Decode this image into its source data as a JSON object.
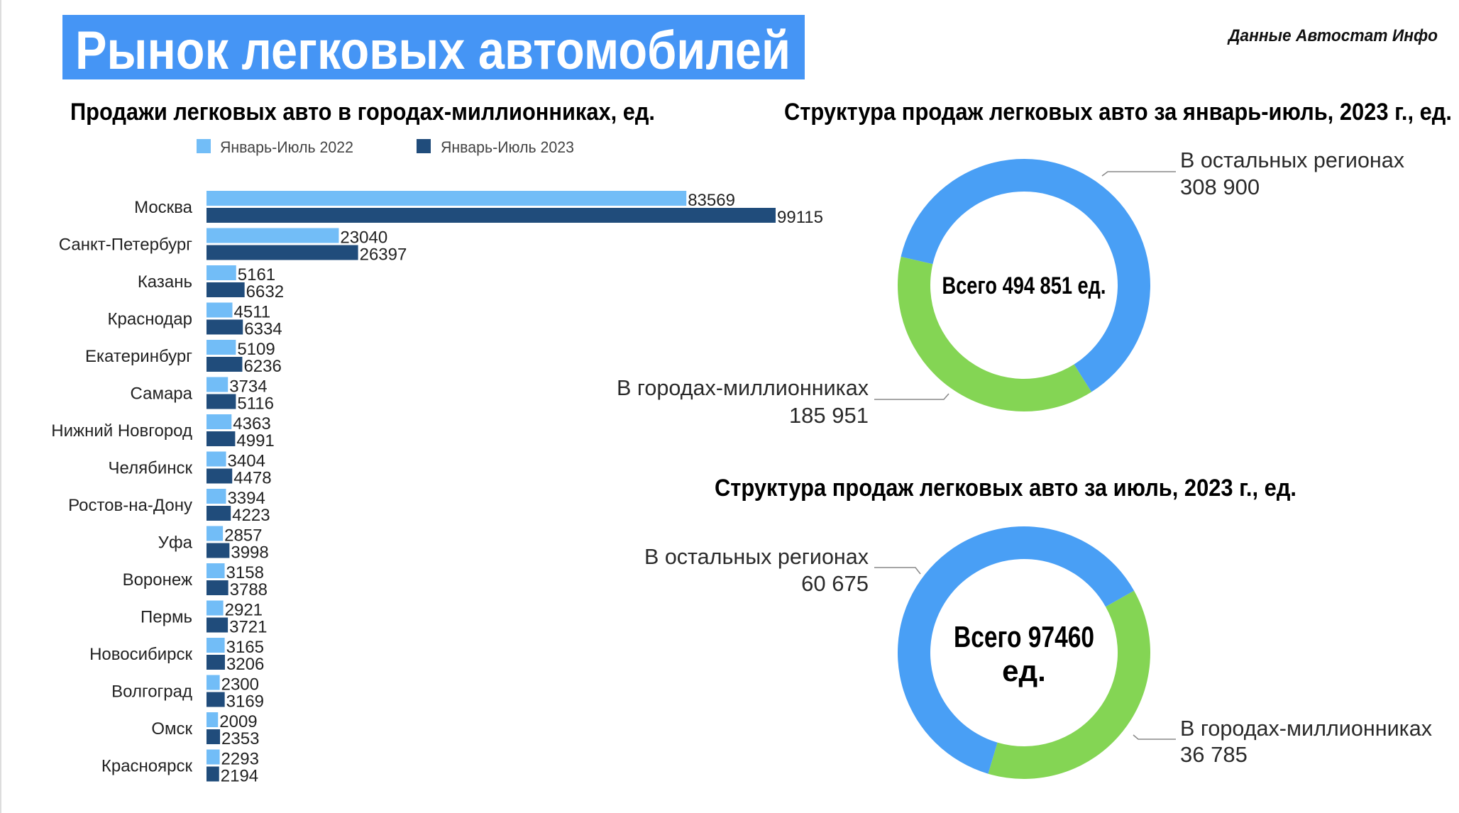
{
  "header": {
    "title": "Рынок легковых автомобилей",
    "source": "Данные Автостат Инфо",
    "title_bg_color": "#4595F5"
  },
  "chart_data": [
    {
      "type": "bar",
      "orientation": "horizontal",
      "title": "Продажи легковых авто в городах-миллионниках, ед.",
      "legend_position": "top",
      "grid": false,
      "categories": [
        "Москва",
        "Санкт-Петербург",
        "Казань",
        "Краснодар",
        "Екатеринбург",
        "Самара",
        "Нижний Новгород",
        "Челябинск",
        "Ростов-на-Дону",
        "Уфа",
        "Воронеж",
        "Пермь",
        "Новосибирск",
        "Волгоград",
        "Омск",
        "Красноярск"
      ],
      "series": [
        {
          "name": "Январь-Июль 2022",
          "color": "#72BDF7",
          "values": [
            83569,
            23040,
            5161,
            4511,
            5109,
            3734,
            4363,
            3404,
            3394,
            2857,
            3158,
            2921,
            3165,
            2300,
            2009,
            2293
          ]
        },
        {
          "name": "Январь-Июль 2023",
          "color": "#204C7B",
          "values": [
            99115,
            26397,
            6632,
            6334,
            6236,
            5116,
            4991,
            4478,
            4223,
            3998,
            3788,
            3721,
            3206,
            3169,
            2353,
            2194
          ]
        }
      ]
    },
    {
      "type": "pie",
      "donut": true,
      "title": "Структура продаж легковых авто за январь-июль, 2023 г., ед.",
      "center_label": "Всего 494 851 ед.",
      "slices": [
        {
          "label": "В остальных регионах",
          "value": 308900,
          "value_label": "308 900",
          "color": "#499FF5"
        },
        {
          "label": "В городах-миллионниках",
          "value": 185951,
          "value_label": "185 951",
          "color": "#84D554"
        }
      ]
    },
    {
      "type": "pie",
      "donut": true,
      "title": "Структура продаж легковых авто за июль, 2023 г., ед.",
      "center_label": [
        "Всего 97460",
        "ед."
      ],
      "slices": [
        {
          "label": "В остальных регионах",
          "value": 60675,
          "value_label": "60 675",
          "color": "#499FF5"
        },
        {
          "label": "В городах-миллионниках",
          "value": 36785,
          "value_label": "36 785",
          "color": "#84D554"
        }
      ]
    }
  ]
}
